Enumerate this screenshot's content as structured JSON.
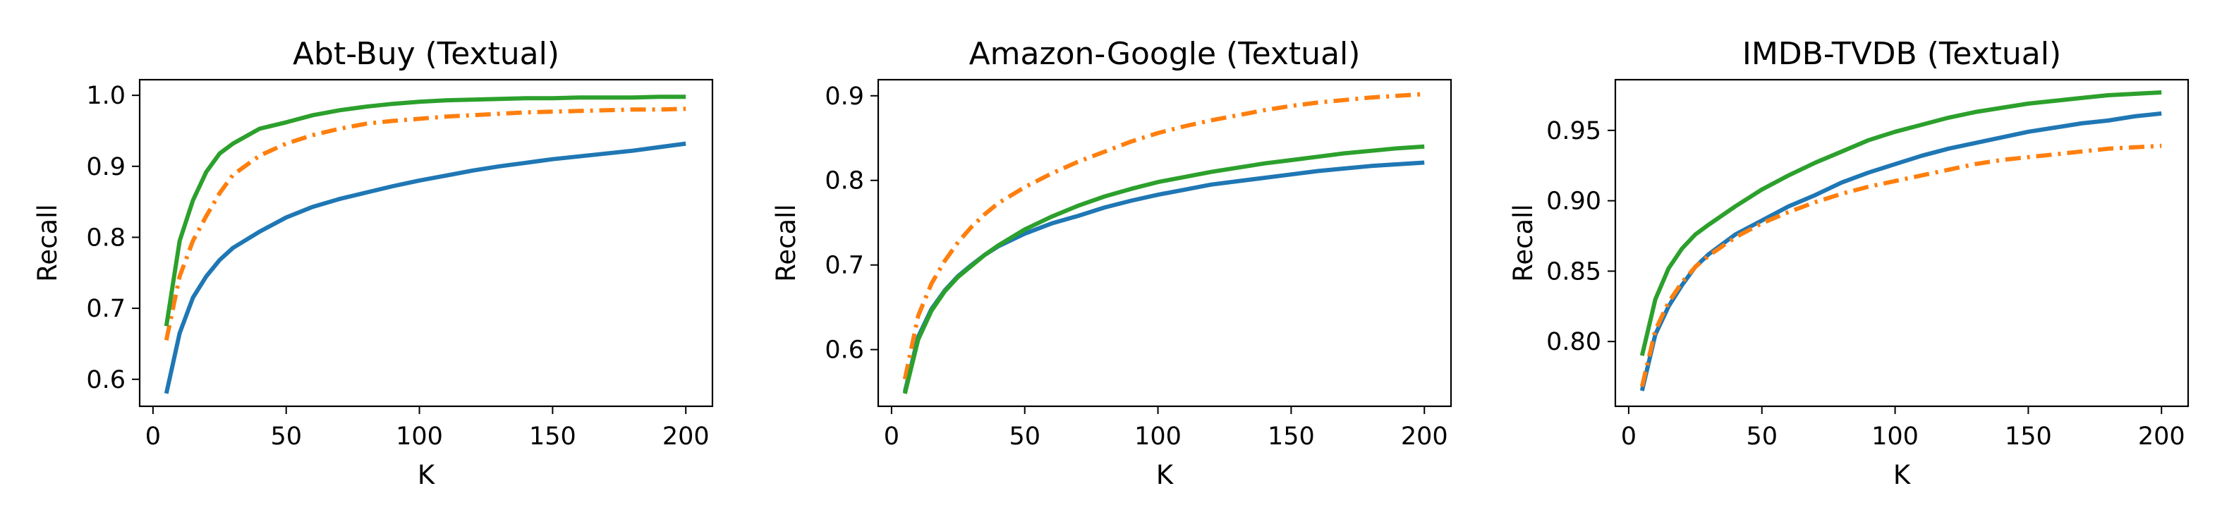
{
  "chart_data": [
    {
      "type": "line",
      "title": "Abt-Buy (Textual)",
      "xlabel": "K",
      "ylabel": "Recall",
      "xlim": [
        -5,
        210
      ],
      "ylim": [
        0.562,
        1.022
      ],
      "xticks": [
        0,
        50,
        100,
        150,
        200
      ],
      "xtick_labels": [
        "0",
        "50",
        "100",
        "150",
        "200"
      ],
      "yticks": [
        0.6,
        0.7,
        0.8,
        0.9,
        1.0
      ],
      "ytick_labels": [
        "0.6",
        "0.7",
        "0.8",
        "0.9",
        "1.0"
      ],
      "grid": false,
      "series": [
        {
          "color": "#1f77b4",
          "dash": "solid",
          "x": [
            5,
            10,
            15,
            20,
            25,
            30,
            40,
            50,
            60,
            70,
            80,
            90,
            100,
            110,
            120,
            130,
            140,
            150,
            160,
            170,
            180,
            190,
            200
          ],
          "y": [
            0.58,
            0.665,
            0.715,
            0.745,
            0.768,
            0.785,
            0.808,
            0.828,
            0.843,
            0.854,
            0.863,
            0.872,
            0.88,
            0.887,
            0.894,
            0.9,
            0.905,
            0.91,
            0.914,
            0.918,
            0.922,
            0.927,
            0.932
          ]
        },
        {
          "color": "#ff7f0e",
          "dash": "dashdot",
          "x": [
            5,
            10,
            15,
            20,
            25,
            30,
            40,
            50,
            60,
            70,
            80,
            90,
            100,
            110,
            120,
            130,
            140,
            150,
            160,
            170,
            180,
            190,
            200
          ],
          "y": [
            0.655,
            0.745,
            0.795,
            0.83,
            0.862,
            0.888,
            0.915,
            0.932,
            0.944,
            0.953,
            0.96,
            0.964,
            0.967,
            0.97,
            0.972,
            0.974,
            0.976,
            0.977,
            0.978,
            0.979,
            0.98,
            0.98,
            0.981
          ]
        },
        {
          "color": "#2ca02c",
          "dash": "solid",
          "x": [
            5,
            10,
            15,
            20,
            25,
            30,
            40,
            50,
            60,
            70,
            80,
            90,
            100,
            110,
            120,
            130,
            140,
            150,
            160,
            170,
            180,
            190,
            200
          ],
          "y": [
            0.675,
            0.795,
            0.852,
            0.892,
            0.918,
            0.932,
            0.953,
            0.962,
            0.972,
            0.979,
            0.984,
            0.988,
            0.991,
            0.993,
            0.994,
            0.995,
            0.996,
            0.996,
            0.997,
            0.997,
            0.997,
            0.998,
            0.998
          ]
        }
      ]
    },
    {
      "type": "line",
      "title": "Amazon-Google (Textual)",
      "xlabel": "K",
      "ylabel": "Recall",
      "xlim": [
        -5,
        210
      ],
      "ylim": [
        0.533,
        0.919
      ],
      "xticks": [
        0,
        50,
        100,
        150,
        200
      ],
      "xtick_labels": [
        "0",
        "50",
        "100",
        "150",
        "200"
      ],
      "yticks": [
        0.6,
        0.7,
        0.8,
        0.9
      ],
      "ytick_labels": [
        "0.6",
        "0.7",
        "0.8",
        "0.9"
      ],
      "grid": false,
      "series": [
        {
          "color": "#1f77b4",
          "dash": "solid",
          "x": [
            5,
            10,
            15,
            20,
            25,
            30,
            35,
            40,
            50,
            60,
            70,
            80,
            90,
            100,
            110,
            120,
            130,
            140,
            150,
            160,
            170,
            180,
            190,
            200
          ],
          "y": [
            0.55,
            0.615,
            0.648,
            0.67,
            0.687,
            0.7,
            0.712,
            0.722,
            0.737,
            0.749,
            0.758,
            0.768,
            0.776,
            0.783,
            0.789,
            0.795,
            0.799,
            0.803,
            0.807,
            0.811,
            0.814,
            0.817,
            0.819,
            0.821
          ]
        },
        {
          "color": "#ff7f0e",
          "dash": "dashdot",
          "x": [
            5,
            10,
            15,
            20,
            25,
            30,
            35,
            40,
            50,
            60,
            70,
            80,
            90,
            100,
            110,
            120,
            130,
            140,
            150,
            160,
            170,
            180,
            190,
            200
          ],
          "y": [
            0.565,
            0.64,
            0.678,
            0.705,
            0.727,
            0.745,
            0.76,
            0.773,
            0.792,
            0.808,
            0.822,
            0.834,
            0.846,
            0.856,
            0.864,
            0.871,
            0.877,
            0.883,
            0.888,
            0.892,
            0.895,
            0.898,
            0.9,
            0.902
          ]
        },
        {
          "color": "#2ca02c",
          "dash": "solid",
          "x": [
            5,
            10,
            15,
            20,
            25,
            30,
            35,
            40,
            50,
            60,
            70,
            80,
            90,
            100,
            110,
            120,
            130,
            140,
            150,
            160,
            170,
            180,
            190,
            200
          ],
          "y": [
            0.548,
            0.612,
            0.646,
            0.669,
            0.686,
            0.699,
            0.712,
            0.723,
            0.742,
            0.757,
            0.77,
            0.781,
            0.79,
            0.798,
            0.804,
            0.81,
            0.815,
            0.82,
            0.824,
            0.828,
            0.832,
            0.835,
            0.838,
            0.84
          ]
        }
      ]
    },
    {
      "type": "line",
      "title": "IMDB-TVDB (Textual)",
      "xlabel": "K",
      "ylabel": "Recall",
      "xlim": [
        -5,
        210
      ],
      "ylim": [
        0.754,
        0.986
      ],
      "xticks": [
        0,
        50,
        100,
        150,
        200
      ],
      "xtick_labels": [
        "0",
        "50",
        "100",
        "150",
        "200"
      ],
      "yticks": [
        0.8,
        0.85,
        0.9,
        0.95
      ],
      "ytick_labels": [
        "0.80",
        "0.85",
        "0.90",
        "0.95"
      ],
      "grid": false,
      "series": [
        {
          "color": "#1f77b4",
          "dash": "solid",
          "x": [
            5,
            10,
            15,
            20,
            25,
            30,
            40,
            50,
            60,
            70,
            80,
            90,
            100,
            110,
            120,
            130,
            140,
            150,
            160,
            170,
            180,
            190,
            200
          ],
          "y": [
            0.765,
            0.805,
            0.825,
            0.84,
            0.853,
            0.862,
            0.876,
            0.886,
            0.896,
            0.904,
            0.913,
            0.92,
            0.926,
            0.932,
            0.937,
            0.941,
            0.945,
            0.949,
            0.952,
            0.955,
            0.957,
            0.96,
            0.962
          ]
        },
        {
          "color": "#ff7f0e",
          "dash": "dashdot",
          "x": [
            5,
            10,
            15,
            20,
            25,
            30,
            40,
            50,
            60,
            70,
            80,
            90,
            100,
            110,
            120,
            130,
            140,
            150,
            160,
            170,
            180,
            190,
            200
          ],
          "y": [
            0.768,
            0.808,
            0.828,
            0.842,
            0.853,
            0.861,
            0.874,
            0.884,
            0.892,
            0.899,
            0.905,
            0.91,
            0.914,
            0.918,
            0.922,
            0.926,
            0.929,
            0.931,
            0.933,
            0.935,
            0.937,
            0.938,
            0.939
          ]
        },
        {
          "color": "#2ca02c",
          "dash": "solid",
          "x": [
            5,
            10,
            15,
            20,
            25,
            30,
            40,
            50,
            60,
            70,
            80,
            90,
            100,
            110,
            120,
            130,
            140,
            150,
            160,
            170,
            180,
            190,
            200
          ],
          "y": [
            0.79,
            0.83,
            0.852,
            0.866,
            0.876,
            0.883,
            0.896,
            0.908,
            0.918,
            0.927,
            0.935,
            0.943,
            0.949,
            0.954,
            0.959,
            0.963,
            0.966,
            0.969,
            0.971,
            0.973,
            0.975,
            0.976,
            0.977
          ]
        }
      ]
    }
  ]
}
